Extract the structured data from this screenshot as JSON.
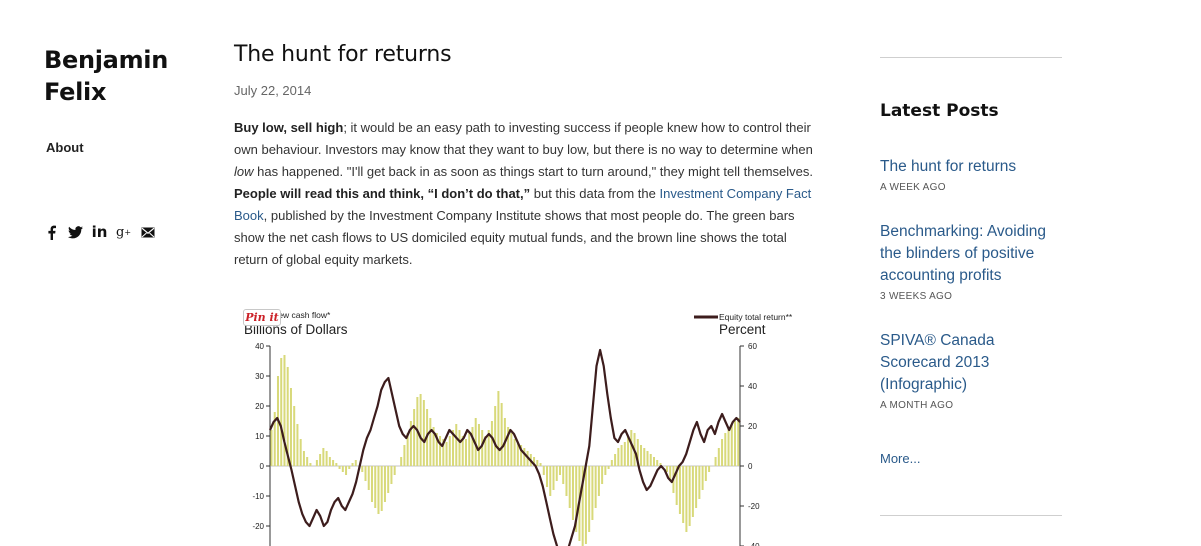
{
  "site": {
    "name_line1": "Benjamin",
    "name_line2": "Felix",
    "nav_about": "About",
    "social_icons": [
      "facebook-icon",
      "twitter-icon",
      "linkedin-icon",
      "google-plus-icon",
      "email-icon"
    ]
  },
  "post": {
    "title": "The hunt for returns",
    "date": "July 22, 2014",
    "p1_bold1": "Buy low, sell high",
    "p1_t1": "; it would be an easy path to investing success if people knew how to control their own behaviour. Investors may know that they want to buy low, but there is no way to determine when ",
    "p1_em": "low",
    "p1_t2": " has happened. \"I'll get back in as soon as things start to turn around,\" they might tell themselves. ",
    "p1_bold2": "People will read this and think, “I don’t do that,”",
    "p1_t3": " but this data from the ",
    "p1_link": "Investment Company Fact Book",
    "p1_t4": ", published by the Investment Company Institute shows that most people do. The green bars show the net cash flows to US domiciled equity mutual funds, and the brown line shows the total return of global equity markets."
  },
  "pinit_label": "Pin it",
  "sidebar": {
    "heading": "Latest Posts",
    "posts": [
      {
        "title": "The hunt for returns",
        "ago": "A WEEK AGO"
      },
      {
        "title": "Benchmarking: Avoiding the blinders of positive accounting profits",
        "ago": "3 WEEKS AGO"
      },
      {
        "title": "SPIVA® Canada Scorecard 2013 (Infographic)",
        "ago": "A MONTH AGO"
      }
    ],
    "more": "More..."
  },
  "colors": {
    "bars": "#d8d97a",
    "line": "#3d1d1d",
    "link": "#2a5a8a"
  },
  "chart_data": {
    "type": "bar",
    "legend_left": "Net new cash flow*",
    "legend_right": "Equity total return**",
    "ylabel_left": "Billions of Dollars",
    "ylabel_right": "Percent",
    "ylim_left": [
      -30,
      40
    ],
    "ylim_right": [
      -60,
      60
    ],
    "ticks_left": [
      40,
      30,
      20,
      10,
      0,
      -10,
      -20
    ],
    "ticks_right": [
      60,
      40,
      20,
      0,
      -20,
      -40
    ],
    "series": [
      {
        "name": "Net new cash flow*",
        "axis": "left",
        "values": [
          12,
          18,
          30,
          36,
          37,
          33,
          26,
          20,
          14,
          9,
          5,
          3,
          1,
          0,
          2,
          4,
          6,
          5,
          3,
          2,
          1,
          -1,
          -2,
          -3,
          -1,
          1,
          2,
          0,
          -2,
          -5,
          -8,
          -12,
          -14,
          -16,
          -15,
          -12,
          -9,
          -6,
          -3,
          0,
          3,
          7,
          11,
          15,
          19,
          23,
          24,
          22,
          19,
          16,
          13,
          11,
          10,
          9,
          8,
          10,
          12,
          14,
          12,
          10,
          9,
          11,
          13,
          16,
          14,
          12,
          10,
          12,
          15,
          20,
          25,
          21,
          16,
          13,
          11,
          9,
          8,
          7,
          6,
          5,
          4,
          3,
          2,
          1,
          -3,
          -7,
          -10,
          -8,
          -5,
          -3,
          -6,
          -10,
          -14,
          -18,
          -22,
          -25,
          -28,
          -26,
          -22,
          -18,
          -14,
          -10,
          -6,
          -3,
          -1,
          2,
          4,
          6,
          7,
          8,
          10,
          12,
          11,
          9,
          7,
          6,
          5,
          4,
          3,
          2,
          1,
          0,
          -2,
          -5,
          -9,
          -13,
          -16,
          -19,
          -22,
          -20,
          -17,
          -14,
          -11,
          -8,
          -5,
          -2,
          0,
          3,
          6,
          9,
          11,
          13,
          14,
          15,
          16
        ],
        "values_note": "estimated"
      },
      {
        "name": "Equity total return**",
        "axis": "right",
        "values": [
          18,
          22,
          24,
          20,
          12,
          5,
          -2,
          -10,
          -18,
          -24,
          -28,
          -30,
          -26,
          -22,
          -25,
          -30,
          -28,
          -22,
          -18,
          -16,
          -20,
          -22,
          -18,
          -14,
          -8,
          0,
          8,
          14,
          18,
          24,
          30,
          38,
          42,
          44,
          36,
          28,
          20,
          16,
          14,
          18,
          20,
          18,
          14,
          12,
          16,
          18,
          16,
          12,
          10,
          14,
          18,
          16,
          14,
          12,
          14,
          18,
          16,
          12,
          8,
          10,
          14,
          16,
          14,
          10,
          8,
          10,
          14,
          18,
          16,
          12,
          8,
          6,
          4,
          2,
          0,
          -4,
          -10,
          -18,
          -26,
          -34,
          -40,
          -44,
          -46,
          -42,
          -36,
          -30,
          -20,
          -10,
          0,
          10,
          30,
          50,
          58,
          50,
          36,
          24,
          14,
          12,
          16,
          18,
          14,
          10,
          6,
          -2,
          -8,
          -12,
          -10,
          -6,
          -2,
          0,
          -2,
          -6,
          -8,
          -4,
          0,
          2,
          6,
          12,
          18,
          22,
          16,
          12,
          18,
          20,
          16,
          22,
          26,
          22,
          18,
          22,
          24,
          22
        ],
        "values_note": "estimated"
      }
    ]
  }
}
